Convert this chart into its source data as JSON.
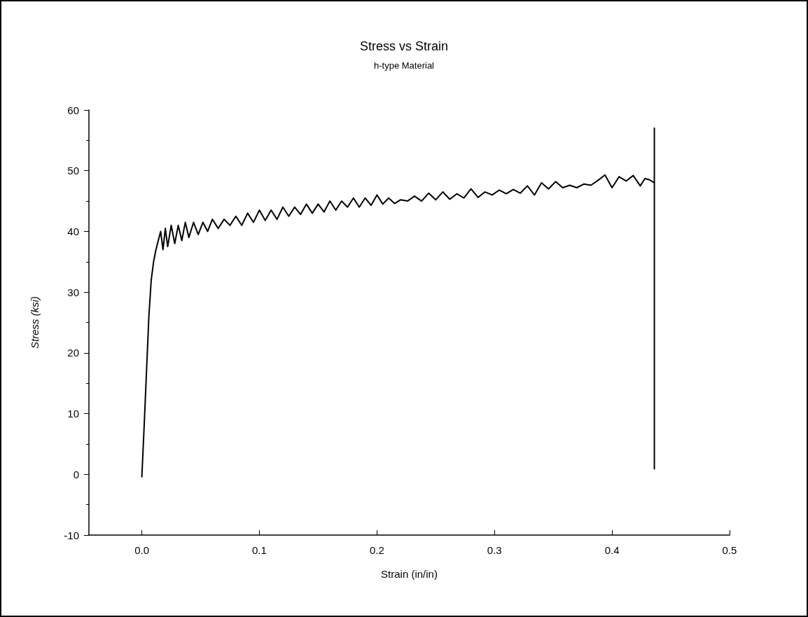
{
  "chart_data": {
    "type": "line",
    "title": "Stress vs Strain",
    "subtitle": "h-type Material",
    "xlabel": "Strain (in/in)",
    "ylabel": "Stress (ksi)",
    "xlim": [
      -0.045,
      0.5
    ],
    "xticks": [
      {
        "value": 0,
        "label": "0.0"
      },
      0.1,
      0.2,
      0.3,
      0.4,
      0.5
    ],
    "ylim": [
      -10,
      60
    ],
    "yticks": [
      -10,
      0,
      10,
      20,
      30,
      40,
      50,
      60
    ],
    "grid": false,
    "marker": "none",
    "line_style": "solid",
    "series": [
      {
        "color": "#000000",
        "x": [
          0,
          0.002,
          0.004,
          0.006,
          0.008,
          0.01,
          0.012,
          0.014,
          0.016,
          0.018,
          0.02,
          0.022,
          0.025,
          0.028,
          0.031,
          0.034,
          0.037,
          0.04,
          0.044,
          0.048,
          0.052,
          0.056,
          0.06,
          0.065,
          0.07,
          0.075,
          0.08,
          0.085,
          0.09,
          0.095,
          0.1,
          0.105,
          0.11,
          0.115,
          0.12,
          0.125,
          0.13,
          0.135,
          0.14,
          0.145,
          0.15,
          0.155,
          0.16,
          0.165,
          0.17,
          0.175,
          0.18,
          0.185,
          0.19,
          0.195,
          0.2,
          0.205,
          0.21,
          0.215,
          0.22,
          0.226,
          0.232,
          0.238,
          0.244,
          0.25,
          0.256,
          0.262,
          0.268,
          0.274,
          0.28,
          0.286,
          0.292,
          0.298,
          0.304,
          0.31,
          0.316,
          0.322,
          0.328,
          0.334,
          0.34,
          0.346,
          0.352,
          0.358,
          0.364,
          0.37,
          0.376,
          0.382,
          0.388,
          0.394,
          0.4,
          0.406,
          0.412,
          0.418,
          0.424,
          0.428,
          0.432,
          0.436,
          0.436,
          0.436
        ],
        "values": [
          -0.5,
          8,
          17,
          26,
          32,
          35,
          37,
          38.5,
          40,
          37,
          40.5,
          37.5,
          41,
          38,
          41,
          38.5,
          41.5,
          39,
          41.5,
          39.5,
          41.5,
          40,
          42,
          40.5,
          42,
          41,
          42.5,
          41,
          43,
          41.5,
          43.5,
          41.8,
          43.5,
          42,
          44,
          42.5,
          44,
          42.8,
          44.5,
          43,
          44.5,
          43.2,
          45,
          43.5,
          45,
          44,
          45.5,
          44,
          45.5,
          44.3,
          46,
          44.5,
          45.5,
          44.6,
          45.2,
          45,
          45.8,
          45,
          46.3,
          45.2,
          46.5,
          45.3,
          46.2,
          45.5,
          47,
          45.6,
          46.5,
          46,
          46.8,
          46.2,
          46.9,
          46.3,
          47.5,
          46,
          48,
          47,
          48.2,
          47.2,
          47.6,
          47.2,
          47.8,
          47.6,
          48.4,
          49.3,
          47.2,
          49,
          48.3,
          49.2,
          47.5,
          48.7,
          48.5,
          48,
          57,
          0.8
        ]
      }
    ]
  }
}
